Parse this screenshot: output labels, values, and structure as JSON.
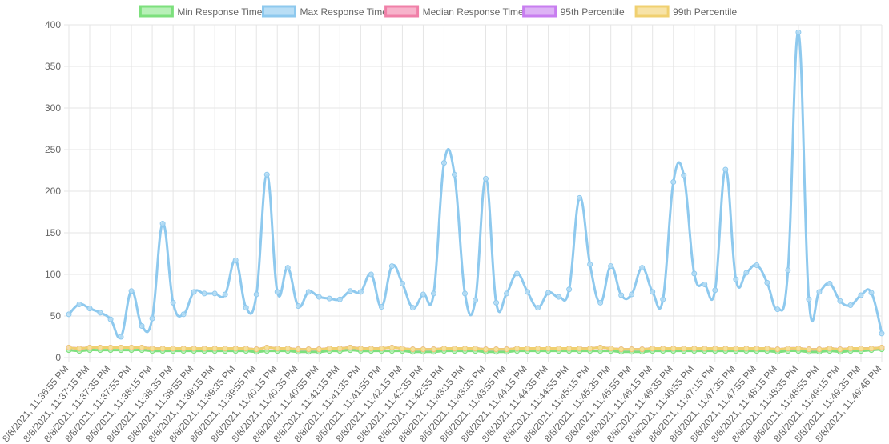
{
  "chart_data": {
    "type": "line",
    "categories": [
      "8/8/2021, 11:36:55 PM",
      null,
      "8/8/2021, 11:37:15 PM",
      null,
      "8/8/2021, 11:37:35 PM",
      null,
      "8/8/2021, 11:37:55 PM",
      null,
      "8/8/2021, 11:38:15 PM",
      null,
      "8/8/2021, 11:38:35 PM",
      null,
      "8/8/2021, 11:38:55 PM",
      null,
      "8/8/2021, 11:39:15 PM",
      null,
      "8/8/2021, 11:39:35 PM",
      null,
      "8/8/2021, 11:39:55 PM",
      null,
      "8/8/2021, 11:40:15 PM",
      null,
      "8/8/2021, 11:40:35 PM",
      null,
      "8/8/2021, 11:40:55 PM",
      null,
      "8/8/2021, 11:41:15 PM",
      null,
      "8/8/2021, 11:41:35 PM",
      null,
      "8/8/2021, 11:41:55 PM",
      null,
      "8/8/2021, 11:42:15 PM",
      null,
      "8/8/2021, 11:42:35 PM",
      null,
      "8/8/2021, 11:42:55 PM",
      null,
      "8/8/2021, 11:43:15 PM",
      null,
      "8/8/2021, 11:43:35 PM",
      null,
      "8/8/2021, 11:43:55 PM",
      null,
      "8/8/2021, 11:44:15 PM",
      null,
      "8/8/2021, 11:44:35 PM",
      null,
      "8/8/2021, 11:44:55 PM",
      null,
      "8/8/2021, 11:45:15 PM",
      null,
      "8/8/2021, 11:45:35 PM",
      null,
      "8/8/2021, 11:45:55 PM",
      null,
      "8/8/2021, 11:46:15 PM",
      null,
      "8/8/2021, 11:46:35 PM",
      null,
      "8/8/2021, 11:46:55 PM",
      null,
      "8/8/2021, 11:47:15 PM",
      null,
      "8/8/2021, 11:47:35 PM",
      null,
      "8/8/2021, 11:47:55 PM",
      null,
      "8/8/2021, 11:48:15 PM",
      null,
      "8/8/2021, 11:48:35 PM",
      null,
      "8/8/2021, 11:48:55 PM",
      null,
      "8/8/2021, 11:49:15 PM",
      null,
      "8/8/2021, 11:49:35 PM",
      null,
      "8/8/2021, 11:49:46 PM"
    ],
    "series": [
      {
        "name": "Min Response Time",
        "color": "#7de07d",
        "fill": "#b8f0b8",
        "values": [
          9,
          8,
          9,
          9,
          9,
          9,
          9,
          9,
          8,
          8,
          8,
          8,
          8,
          8,
          8,
          8,
          8,
          8,
          7,
          8,
          8,
          8,
          7,
          7,
          7,
          8,
          8,
          9,
          8,
          8,
          8,
          8,
          8,
          7,
          7,
          7,
          8,
          8,
          8,
          8,
          7,
          7,
          7,
          8,
          8,
          8,
          8,
          8,
          8,
          8,
          8,
          8,
          8,
          7,
          7,
          7,
          8,
          8,
          8,
          8,
          8,
          8,
          8,
          8,
          8,
          8,
          8,
          8,
          7,
          8,
          8,
          7,
          7,
          8,
          7,
          8,
          8,
          9,
          10
        ]
      },
      {
        "name": "Max Response Time",
        "color": "#8ec9ee",
        "fill": "#b9def5",
        "values": [
          52,
          64,
          59,
          54,
          46,
          25,
          80,
          38,
          47,
          161,
          66,
          52,
          79,
          77,
          77,
          76,
          117,
          60,
          76,
          220,
          79,
          108,
          62,
          79,
          73,
          71,
          70,
          80,
          79,
          100,
          61,
          110,
          89,
          60,
          76,
          77,
          234,
          220,
          77,
          69,
          215,
          66,
          77,
          101,
          79,
          60,
          78,
          73,
          82,
          192,
          112,
          66,
          110,
          75,
          76,
          108,
          79,
          70,
          211,
          219,
          101,
          88,
          81,
          226,
          94,
          102,
          111,
          90,
          58,
          105,
          391,
          70,
          79,
          89,
          68,
          63,
          75,
          78,
          29
        ]
      },
      {
        "name": "Median Response Time",
        "color": "#f080a8",
        "fill": "#f7b3cb",
        "values": [
          12,
          11,
          12,
          12,
          12,
          12,
          12,
          12,
          11,
          11,
          11,
          11,
          11,
          11,
          11,
          11,
          11,
          11,
          10,
          12,
          11,
          11,
          10,
          10,
          10,
          11,
          11,
          12,
          11,
          11,
          11,
          12,
          11,
          10,
          10,
          10,
          11,
          11,
          11,
          11,
          10,
          10,
          10,
          11,
          11,
          11,
          11,
          11,
          11,
          11,
          11,
          12,
          11,
          10,
          10,
          10,
          11,
          11,
          11,
          11,
          11,
          11,
          11,
          11,
          11,
          11,
          11,
          11,
          10,
          11,
          11,
          10,
          10,
          11,
          10,
          11,
          11,
          11,
          12
        ]
      },
      {
        "name": "95th Percentile",
        "color": "#c87ef0",
        "fill": "#ddb3f5",
        "values": [
          12,
          11,
          12,
          12,
          12,
          12,
          12,
          12,
          11,
          11,
          11,
          11,
          11,
          11,
          11,
          11,
          11,
          11,
          10,
          12,
          11,
          11,
          10,
          10,
          10,
          11,
          11,
          12,
          11,
          11,
          11,
          12,
          11,
          10,
          10,
          10,
          11,
          11,
          11,
          11,
          10,
          10,
          10,
          11,
          11,
          11,
          11,
          11,
          11,
          11,
          11,
          12,
          11,
          10,
          10,
          10,
          11,
          11,
          11,
          11,
          11,
          11,
          11,
          11,
          11,
          11,
          11,
          11,
          10,
          11,
          11,
          10,
          10,
          11,
          10,
          11,
          11,
          11,
          12
        ]
      },
      {
        "name": "99th Percentile",
        "color": "#f0d070",
        "fill": "#f7e3a8",
        "values": [
          12,
          11,
          12,
          12,
          12,
          12,
          12,
          12,
          11,
          11,
          11,
          11,
          11,
          11,
          11,
          11,
          11,
          11,
          10,
          12,
          11,
          11,
          10,
          10,
          10,
          11,
          11,
          12,
          11,
          11,
          11,
          12,
          11,
          10,
          10,
          10,
          11,
          11,
          11,
          11,
          10,
          10,
          10,
          11,
          11,
          11,
          11,
          11,
          11,
          11,
          11,
          12,
          11,
          10,
          10,
          10,
          11,
          11,
          11,
          11,
          11,
          11,
          11,
          11,
          11,
          11,
          11,
          11,
          10,
          11,
          11,
          10,
          10,
          11,
          10,
          11,
          11,
          11,
          12
        ]
      }
    ],
    "ylim": [
      0,
      400
    ],
    "yticks": [
      0,
      50,
      100,
      150,
      200,
      250,
      300,
      350,
      400
    ],
    "grid": true,
    "legend": "top"
  }
}
